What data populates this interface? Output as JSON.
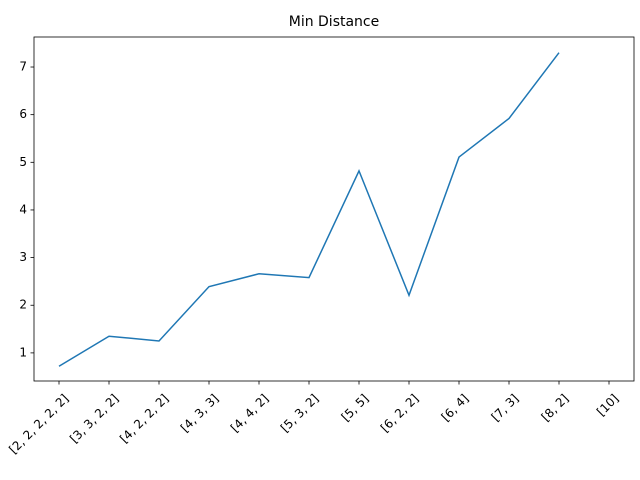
{
  "chart_data": {
    "type": "line",
    "title": "Min Distance",
    "categories": [
      "[2, 2, 2, 2, 2]",
      "[3, 3, 2, 2]",
      "[4, 2, 2, 2]",
      "[4, 3, 3]",
      "[4, 4, 2]",
      "[5, 3, 2]",
      "[5, 5]",
      "[6, 2, 2]",
      "[6, 4]",
      "[7, 3]",
      "[8, 2]",
      "[10]"
    ],
    "series": [
      {
        "name": "Min Distance",
        "color": "#1f77b4",
        "values": [
          0.72,
          1.35,
          1.25,
          2.39,
          2.66,
          2.58,
          4.82,
          2.21,
          5.11,
          5.92,
          7.3,
          null
        ]
      }
    ],
    "ylim": [
      0.41,
      7.63
    ],
    "yticks": [
      1,
      2,
      3,
      4,
      5,
      6,
      7
    ],
    "grid": false
  }
}
